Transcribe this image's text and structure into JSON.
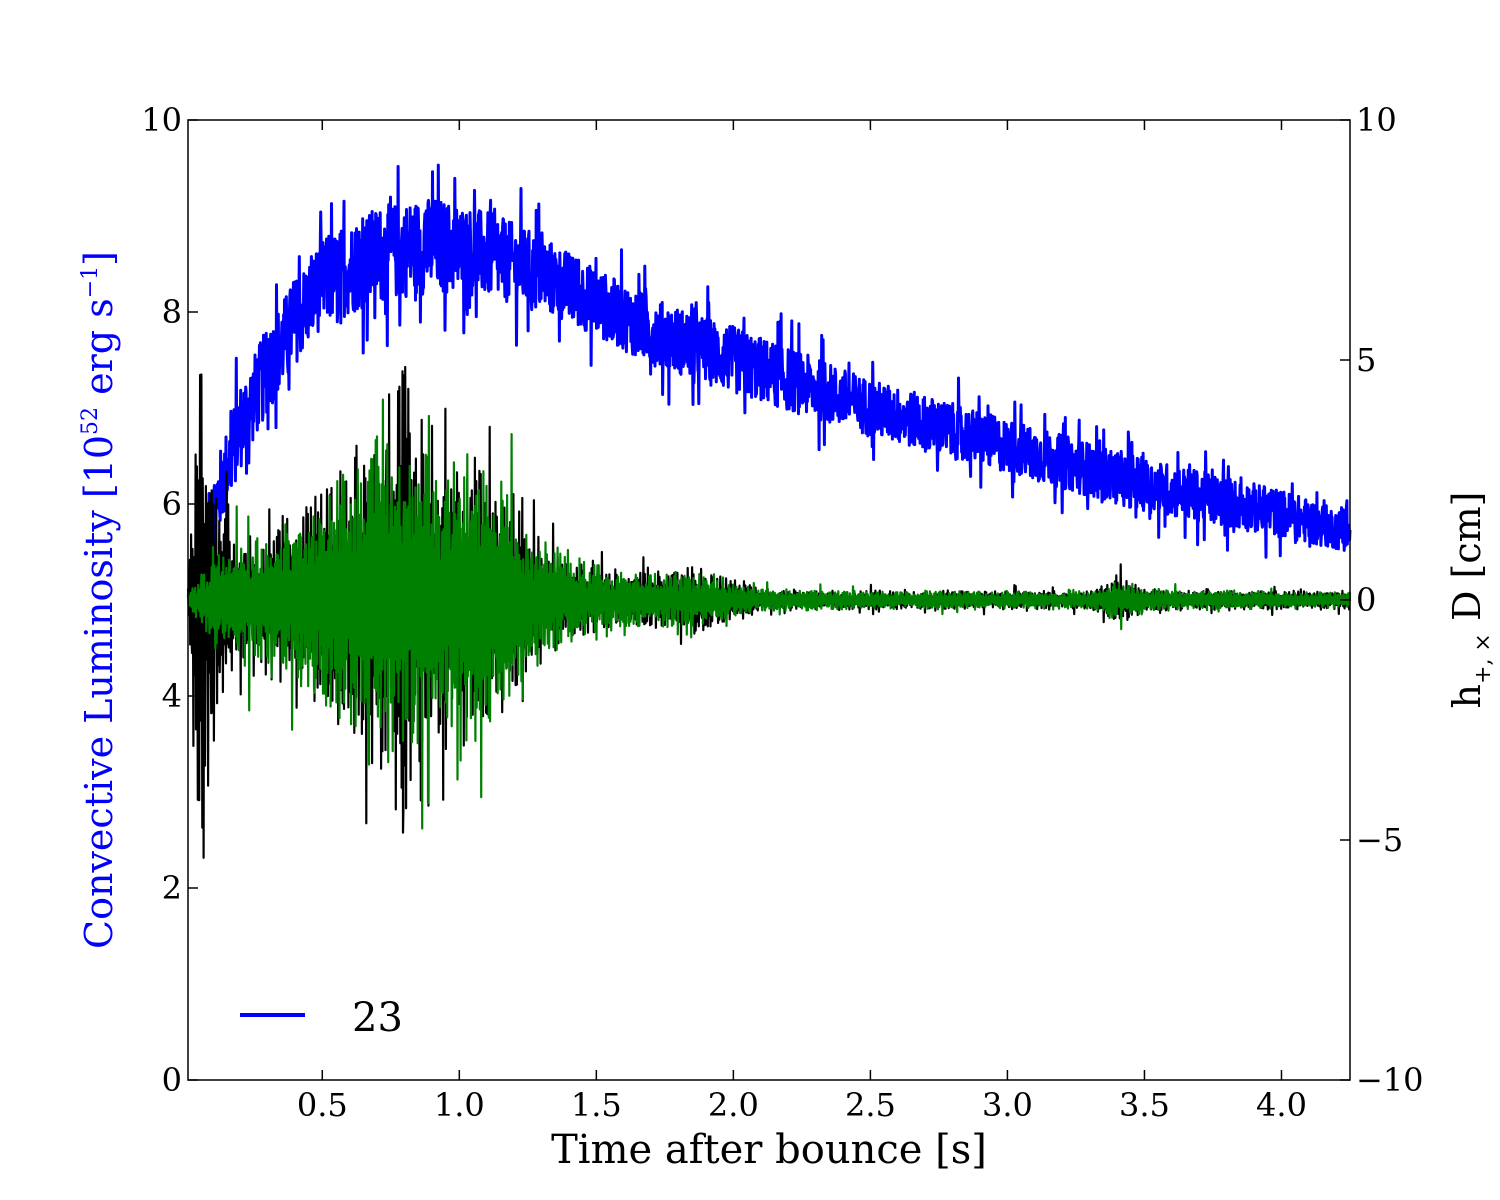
{
  "chart_data": {
    "type": "line",
    "title": "",
    "xlabel": "Time after bounce [s]",
    "ylabel_left": "Convective Luminosity [10",
    "ylabel_left_exp": "52",
    "ylabel_left_mid": " erg s",
    "ylabel_left_exp2": "−1",
    "ylabel_left_end": "]",
    "ylabel_right_h": "h",
    "ylabel_right_sub": "+, ×",
    "ylabel_right_end": " D [cm]",
    "xlim": [
      0.01,
      4.25
    ],
    "ylim_left": [
      0,
      10
    ],
    "ylim_right": [
      -10,
      10
    ],
    "xticks": [
      {
        "v": 0.5,
        "label": "0.5"
      },
      {
        "v": 1.0,
        "label": "1.0"
      },
      {
        "v": 1.5,
        "label": "1.5"
      },
      {
        "v": 2.0,
        "label": "2.0"
      },
      {
        "v": 2.5,
        "label": "2.5"
      },
      {
        "v": 3.0,
        "label": "3.0"
      },
      {
        "v": 3.5,
        "label": "3.5"
      },
      {
        "v": 4.0,
        "label": "4.0"
      }
    ],
    "yticks_left": [
      {
        "v": 0,
        "label": "0"
      },
      {
        "v": 2,
        "label": "2"
      },
      {
        "v": 4,
        "label": "4"
      },
      {
        "v": 6,
        "label": "6"
      },
      {
        "v": 8,
        "label": "8"
      },
      {
        "v": 10,
        "label": "10"
      }
    ],
    "yticks_right": [
      {
        "v": -10,
        "label": "−10"
      },
      {
        "v": -5,
        "label": "−5"
      },
      {
        "v": 0,
        "label": "0"
      },
      {
        "v": 5,
        "label": "5"
      },
      {
        "v": 10,
        "label": "10"
      }
    ],
    "legend": {
      "placement": "lower-left",
      "entries": [
        {
          "label": "23",
          "color": "#0000ff"
        }
      ]
    },
    "series": [
      {
        "name": "Convective luminosity (23)",
        "axis": "left",
        "color": "#0000ff",
        "t": [
          0.01,
          0.05,
          0.1,
          0.2,
          0.3,
          0.4,
          0.5,
          0.7,
          0.9,
          1.1,
          1.3,
          1.5,
          1.7,
          2.0,
          2.5,
          3.0,
          3.5,
          4.0,
          4.25
        ],
        "mean": [
          5.0,
          5.3,
          5.9,
          6.8,
          7.4,
          7.9,
          8.3,
          8.6,
          8.7,
          8.6,
          8.4,
          8.1,
          7.8,
          7.5,
          7.0,
          6.6,
          6.2,
          5.9,
          5.7
        ],
        "noise": [
          0.1,
          0.3,
          0.4,
          0.45,
          0.45,
          0.45,
          0.45,
          0.5,
          0.5,
          0.45,
          0.4,
          0.35,
          0.35,
          0.35,
          0.3,
          0.28,
          0.28,
          0.25,
          0.2
        ]
      },
      {
        "name": "h_plus D",
        "axis": "right",
        "color": "#000000",
        "t": [
          0.01,
          0.04,
          0.06,
          0.09,
          0.12,
          0.18,
          0.3,
          0.5,
          0.7,
          0.8,
          0.9,
          1.0,
          1.1,
          1.25,
          1.4,
          1.6,
          1.9,
          2.1,
          2.5,
          3.3,
          3.4,
          3.5,
          4.25
        ],
        "amp": [
          0.3,
          6,
          8,
          5,
          3,
          1.8,
          2,
          3,
          4.5,
          7,
          4,
          3.8,
          4,
          2,
          1,
          0.8,
          0.9,
          0.3,
          0.25,
          0.25,
          0.7,
          0.3,
          0.25
        ]
      },
      {
        "name": "h_cross D",
        "axis": "right",
        "color": "#008000",
        "t": [
          0.01,
          0.05,
          0.1,
          0.15,
          0.3,
          0.5,
          0.7,
          0.8,
          0.9,
          1.0,
          1.1,
          1.25,
          1.4,
          1.6,
          1.9,
          2.1,
          2.5,
          3.3,
          3.4,
          3.5,
          4.25
        ],
        "amp": [
          0.2,
          0.6,
          1.2,
          1.8,
          1.8,
          3,
          5,
          4.5,
          4,
          3.5,
          4.2,
          2,
          1.2,
          0.8,
          0.7,
          0.3,
          0.25,
          0.25,
          0.6,
          0.3,
          0.2
        ]
      }
    ]
  }
}
